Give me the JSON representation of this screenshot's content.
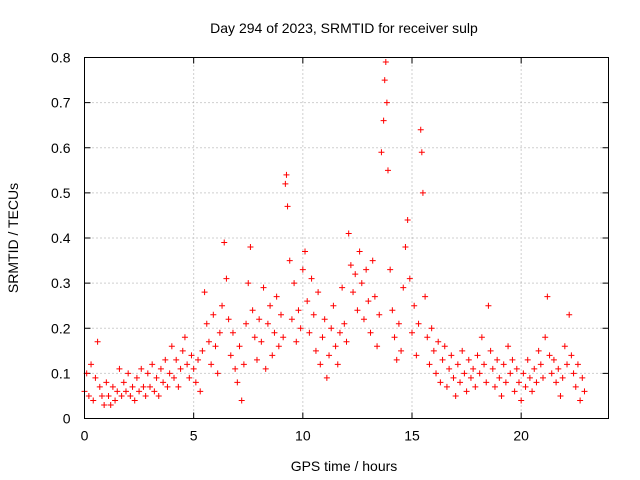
{
  "chart_data": {
    "type": "scatter",
    "title": "Day 294 of 2023, SRMTID for receiver sulp",
    "xlabel": "GPS time / hours",
    "ylabel": "SRMTID / TECUs",
    "xlim": [
      0,
      24
    ],
    "ylim": [
      0,
      0.8
    ],
    "xticks": [
      0,
      5,
      10,
      15,
      20
    ],
    "xtick_labels": [
      "0",
      "5",
      "10",
      "15",
      "20"
    ],
    "yticks": [
      0,
      0.1,
      0.2,
      0.3,
      0.4,
      0.5,
      0.6,
      0.7,
      0.8
    ],
    "ytick_labels": [
      "0",
      "0.1",
      "0.2",
      "0.3",
      "0.4",
      "0.5",
      "0.6",
      "0.7",
      "0.8"
    ],
    "grid": true,
    "marker": "+",
    "color": "#ff0000",
    "series": [
      {
        "name": "SRMTID",
        "points": [
          [
            0.0,
            0.06
          ],
          [
            0.1,
            0.1
          ],
          [
            0.2,
            0.05
          ],
          [
            0.3,
            0.12
          ],
          [
            0.4,
            0.04
          ],
          [
            0.5,
            0.09
          ],
          [
            0.6,
            0.17
          ],
          [
            0.7,
            0.07
          ],
          [
            0.8,
            0.05
          ],
          [
            0.9,
            0.03
          ],
          [
            1.0,
            0.08
          ],
          [
            1.1,
            0.05
          ],
          [
            1.2,
            0.03
          ],
          [
            1.3,
            0.07
          ],
          [
            1.4,
            0.04
          ],
          [
            1.5,
            0.06
          ],
          [
            1.6,
            0.11
          ],
          [
            1.7,
            0.05
          ],
          [
            1.8,
            0.08
          ],
          [
            1.9,
            0.06
          ],
          [
            2.0,
            0.1
          ],
          [
            2.1,
            0.05
          ],
          [
            2.2,
            0.07
          ],
          [
            2.3,
            0.04
          ],
          [
            2.4,
            0.09
          ],
          [
            2.5,
            0.06
          ],
          [
            2.6,
            0.11
          ],
          [
            2.7,
            0.07
          ],
          [
            2.8,
            0.05
          ],
          [
            2.9,
            0.1
          ],
          [
            3.0,
            0.07
          ],
          [
            3.1,
            0.12
          ],
          [
            3.2,
            0.06
          ],
          [
            3.3,
            0.09
          ],
          [
            3.4,
            0.05
          ],
          [
            3.5,
            0.11
          ],
          [
            3.6,
            0.08
          ],
          [
            3.7,
            0.13
          ],
          [
            3.8,
            0.07
          ],
          [
            3.9,
            0.1
          ],
          [
            4.0,
            0.16
          ],
          [
            4.1,
            0.09
          ],
          [
            4.2,
            0.13
          ],
          [
            4.3,
            0.07
          ],
          [
            4.4,
            0.11
          ],
          [
            4.5,
            0.15
          ],
          [
            4.6,
            0.18
          ],
          [
            4.7,
            0.12
          ],
          [
            4.8,
            0.09
          ],
          [
            4.9,
            0.14
          ],
          [
            5.0,
            0.11
          ],
          [
            5.1,
            0.08
          ],
          [
            5.2,
            0.13
          ],
          [
            5.3,
            0.06
          ],
          [
            5.4,
            0.15
          ],
          [
            5.5,
            0.28
          ],
          [
            5.6,
            0.21
          ],
          [
            5.7,
            0.17
          ],
          [
            5.8,
            0.12
          ],
          [
            5.9,
            0.23
          ],
          [
            6.0,
            0.16
          ],
          [
            6.1,
            0.1
          ],
          [
            6.2,
            0.19
          ],
          [
            6.3,
            0.25
          ],
          [
            6.4,
            0.39
          ],
          [
            6.5,
            0.31
          ],
          [
            6.6,
            0.22
          ],
          [
            6.7,
            0.14
          ],
          [
            6.8,
            0.19
          ],
          [
            6.9,
            0.11
          ],
          [
            7.0,
            0.08
          ],
          [
            7.1,
            0.16
          ],
          [
            7.2,
            0.04
          ],
          [
            7.3,
            0.12
          ],
          [
            7.4,
            0.21
          ],
          [
            7.5,
            0.3
          ],
          [
            7.6,
            0.38
          ],
          [
            7.7,
            0.24
          ],
          [
            7.8,
            0.18
          ],
          [
            7.9,
            0.13
          ],
          [
            8.0,
            0.22
          ],
          [
            8.1,
            0.17
          ],
          [
            8.2,
            0.29
          ],
          [
            8.3,
            0.11
          ],
          [
            8.4,
            0.21
          ],
          [
            8.5,
            0.25
          ],
          [
            8.6,
            0.14
          ],
          [
            8.7,
            0.19
          ],
          [
            8.8,
            0.27
          ],
          [
            8.9,
            0.16
          ],
          [
            9.0,
            0.23
          ],
          [
            9.1,
            0.18
          ],
          [
            9.2,
            0.52
          ],
          [
            9.25,
            0.54
          ],
          [
            9.3,
            0.47
          ],
          [
            9.4,
            0.35
          ],
          [
            9.5,
            0.22
          ],
          [
            9.6,
            0.3
          ],
          [
            9.7,
            0.17
          ],
          [
            9.8,
            0.24
          ],
          [
            9.9,
            0.2
          ],
          [
            10.0,
            0.33
          ],
          [
            10.1,
            0.37
          ],
          [
            10.2,
            0.26
          ],
          [
            10.3,
            0.19
          ],
          [
            10.4,
            0.31
          ],
          [
            10.5,
            0.23
          ],
          [
            10.6,
            0.15
          ],
          [
            10.7,
            0.28
          ],
          [
            10.8,
            0.12
          ],
          [
            10.9,
            0.18
          ],
          [
            11.0,
            0.22
          ],
          [
            11.1,
            0.09
          ],
          [
            11.2,
            0.14
          ],
          [
            11.3,
            0.2
          ],
          [
            11.4,
            0.25
          ],
          [
            11.5,
            0.16
          ],
          [
            11.6,
            0.12
          ],
          [
            11.7,
            0.19
          ],
          [
            11.8,
            0.29
          ],
          [
            11.9,
            0.21
          ],
          [
            12.0,
            0.17
          ],
          [
            12.1,
            0.41
          ],
          [
            12.2,
            0.34
          ],
          [
            12.3,
            0.28
          ],
          [
            12.4,
            0.32
          ],
          [
            12.5,
            0.24
          ],
          [
            12.6,
            0.37
          ],
          [
            12.7,
            0.3
          ],
          [
            12.8,
            0.22
          ],
          [
            12.9,
            0.33
          ],
          [
            13.0,
            0.26
          ],
          [
            13.1,
            0.19
          ],
          [
            13.2,
            0.35
          ],
          [
            13.3,
            0.27
          ],
          [
            13.4,
            0.16
          ],
          [
            13.5,
            0.23
          ],
          [
            13.6,
            0.59
          ],
          [
            13.7,
            0.66
          ],
          [
            13.75,
            0.75
          ],
          [
            13.8,
            0.79
          ],
          [
            13.85,
            0.7
          ],
          [
            13.9,
            0.55
          ],
          [
            14.0,
            0.33
          ],
          [
            14.1,
            0.24
          ],
          [
            14.2,
            0.18
          ],
          [
            14.3,
            0.13
          ],
          [
            14.4,
            0.21
          ],
          [
            14.5,
            0.15
          ],
          [
            14.6,
            0.29
          ],
          [
            14.7,
            0.38
          ],
          [
            14.8,
            0.44
          ],
          [
            14.9,
            0.31
          ],
          [
            15.0,
            0.19
          ],
          [
            15.1,
            0.25
          ],
          [
            15.2,
            0.14
          ],
          [
            15.3,
            0.21
          ],
          [
            15.4,
            0.64
          ],
          [
            15.45,
            0.59
          ],
          [
            15.5,
            0.5
          ],
          [
            15.6,
            0.27
          ],
          [
            15.7,
            0.18
          ],
          [
            15.8,
            0.12
          ],
          [
            15.9,
            0.2
          ],
          [
            16.0,
            0.15
          ],
          [
            16.1,
            0.1
          ],
          [
            16.2,
            0.17
          ],
          [
            16.3,
            0.08
          ],
          [
            16.4,
            0.13
          ],
          [
            16.5,
            0.16
          ],
          [
            16.6,
            0.07
          ],
          [
            16.7,
            0.11
          ],
          [
            16.8,
            0.14
          ],
          [
            16.9,
            0.09
          ],
          [
            17.0,
            0.05
          ],
          [
            17.1,
            0.12
          ],
          [
            17.2,
            0.08
          ],
          [
            17.3,
            0.15
          ],
          [
            17.4,
            0.1
          ],
          [
            17.5,
            0.06
          ],
          [
            17.6,
            0.13
          ],
          [
            17.7,
            0.09
          ],
          [
            17.8,
            0.11
          ],
          [
            17.9,
            0.07
          ],
          [
            18.0,
            0.14
          ],
          [
            18.1,
            0.1
          ],
          [
            18.2,
            0.18
          ],
          [
            18.3,
            0.12
          ],
          [
            18.4,
            0.08
          ],
          [
            18.5,
            0.25
          ],
          [
            18.6,
            0.15
          ],
          [
            18.7,
            0.11
          ],
          [
            18.8,
            0.07
          ],
          [
            18.9,
            0.13
          ],
          [
            19.0,
            0.09
          ],
          [
            19.1,
            0.05
          ],
          [
            19.2,
            0.12
          ],
          [
            19.3,
            0.08
          ],
          [
            19.4,
            0.16
          ],
          [
            19.5,
            0.1
          ],
          [
            19.6,
            0.13
          ],
          [
            19.7,
            0.06
          ],
          [
            19.8,
            0.11
          ],
          [
            19.9,
            0.08
          ],
          [
            20.0,
            0.04
          ],
          [
            20.1,
            0.1
          ],
          [
            20.2,
            0.07
          ],
          [
            20.3,
            0.13
          ],
          [
            20.4,
            0.09
          ],
          [
            20.5,
            0.06
          ],
          [
            20.6,
            0.11
          ],
          [
            20.7,
            0.08
          ],
          [
            20.8,
            0.15
          ],
          [
            20.9,
            0.12
          ],
          [
            21.0,
            0.09
          ],
          [
            21.1,
            0.18
          ],
          [
            21.2,
            0.27
          ],
          [
            21.3,
            0.14
          ],
          [
            21.4,
            0.1
          ],
          [
            21.5,
            0.13
          ],
          [
            21.6,
            0.08
          ],
          [
            21.7,
            0.11
          ],
          [
            21.8,
            0.05
          ],
          [
            21.9,
            0.09
          ],
          [
            22.0,
            0.16
          ],
          [
            22.1,
            0.12
          ],
          [
            22.2,
            0.23
          ],
          [
            22.3,
            0.14
          ],
          [
            22.4,
            0.1
          ],
          [
            22.5,
            0.07
          ],
          [
            22.6,
            0.12
          ],
          [
            22.7,
            0.04
          ],
          [
            22.8,
            0.09
          ],
          [
            22.9,
            0.06
          ]
        ]
      }
    ]
  }
}
